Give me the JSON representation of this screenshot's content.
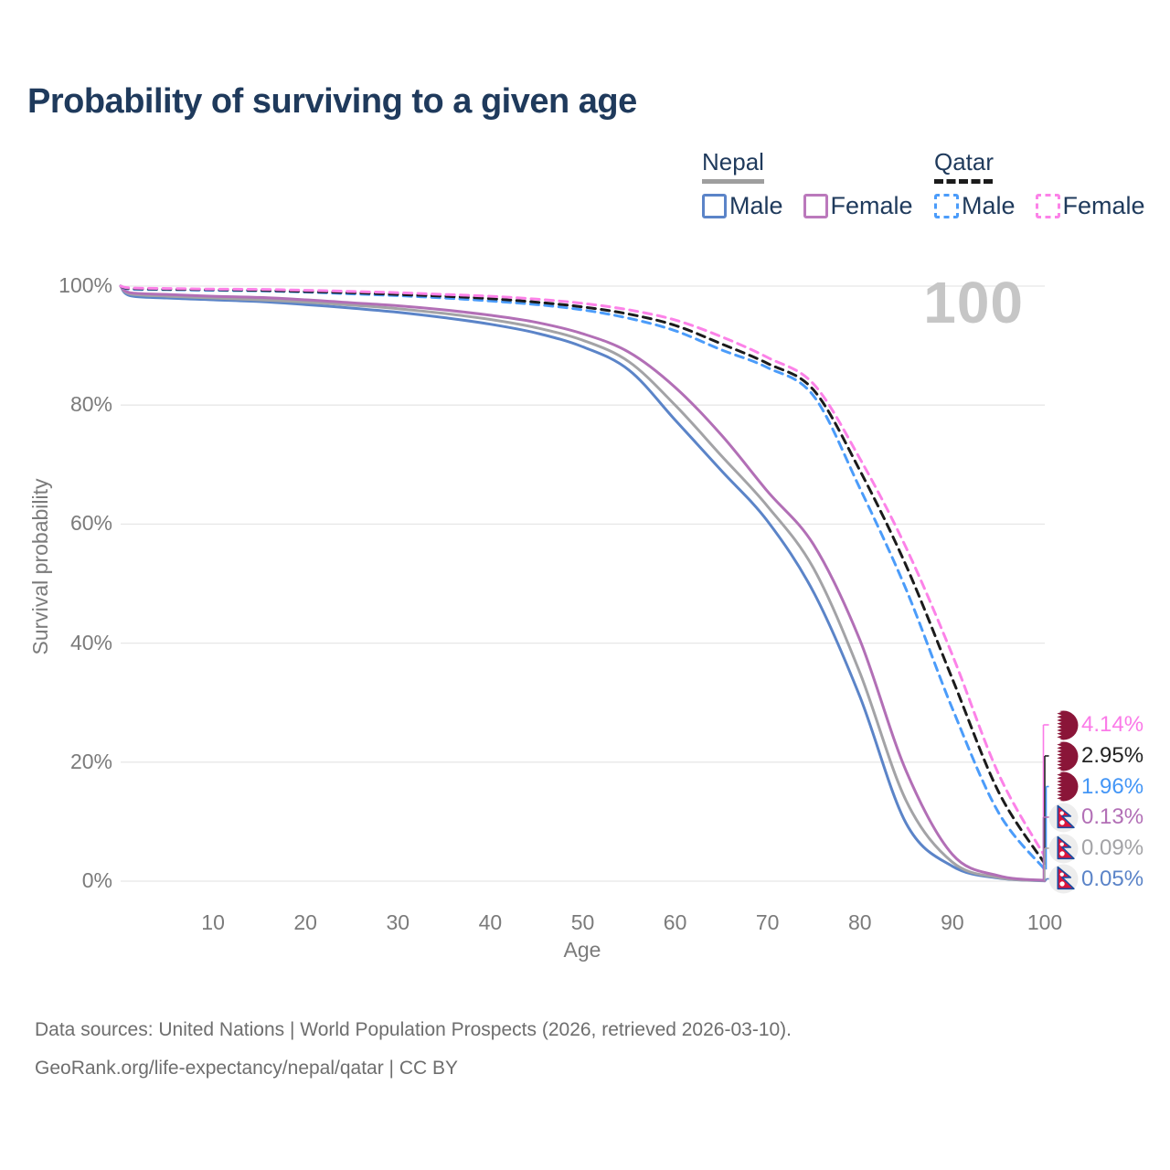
{
  "page": {
    "title": "Probability of surviving to a given age",
    "watermark_age": "100",
    "footer_line1": "Data sources: United Nations | World Population Prospects (2026, retrieved 2026-03-10).",
    "footer_line2": "GeoRank.org/life-expectancy/nepal/qatar | CC BY"
  },
  "legend": {
    "groups": [
      {
        "country": "Nepal",
        "underline_style": "solid",
        "underline_color": "#9e9e9e",
        "items": [
          {
            "label": "Male",
            "color": "#5b84c8",
            "dashed": false
          },
          {
            "label": "Female",
            "color": "#bb79bc",
            "dashed": false
          }
        ]
      },
      {
        "country": "Qatar",
        "underline_style": "dashed",
        "underline_color": "#1b1b1b",
        "items": [
          {
            "label": "Male",
            "color": "#4b9cfa",
            "dashed": true
          },
          {
            "label": "Female",
            "color": "#fc82e8",
            "dashed": true
          }
        ]
      }
    ]
  },
  "chart_data": {
    "type": "line",
    "title": "Probability of surviving to a given age",
    "xlabel": "Age",
    "ylabel": "Survival probability",
    "xlim": [
      0,
      100
    ],
    "ylim": [
      0,
      100
    ],
    "grid": "horizontal-only",
    "x_ticks": [
      10,
      20,
      30,
      40,
      50,
      60,
      70,
      80,
      90,
      100
    ],
    "y_ticks": [
      {
        "value": 0,
        "label": "0%"
      },
      {
        "value": 20,
        "label": "20%"
      },
      {
        "value": 40,
        "label": "40%"
      },
      {
        "value": 60,
        "label": "60%"
      },
      {
        "value": 80,
        "label": "80%"
      },
      {
        "value": 100,
        "label": "100%"
      }
    ],
    "hover_age": "100",
    "ages": [
      0,
      1,
      5,
      10,
      15,
      20,
      25,
      30,
      35,
      40,
      45,
      50,
      55,
      60,
      65,
      70,
      75,
      80,
      85,
      90,
      95,
      100
    ],
    "series": [
      {
        "name": "Nepal Male",
        "country": "Nepal",
        "sex": "Male",
        "color": "#5b84c8",
        "dash": "solid",
        "values": [
          100,
          98.4,
          98.0,
          97.7,
          97.4,
          96.9,
          96.3,
          95.6,
          94.7,
          93.6,
          92.1,
          89.8,
          85.9,
          77.5,
          69.0,
          60.5,
          48.5,
          31.0,
          9.7,
          2.5,
          0.5,
          0.05
        ],
        "end_value_pct": 0.05
      },
      {
        "name": "Nepal Both sexes",
        "country": "Nepal",
        "sex": "Both",
        "color": "#a3a3a6",
        "dash": "solid",
        "values": [
          100,
          98.7,
          98.3,
          98.0,
          97.7,
          97.3,
          96.8,
          96.2,
          95.4,
          94.4,
          93.0,
          90.9,
          87.3,
          80.0,
          71.5,
          63.0,
          52.5,
          35.0,
          13.5,
          3.2,
          0.6,
          0.09
        ],
        "end_value_pct": 0.09
      },
      {
        "name": "Nepal Female",
        "country": "Nepal",
        "sex": "Female",
        "color": "#b26fb6",
        "dash": "solid",
        "values": [
          100,
          98.9,
          98.6,
          98.3,
          98.1,
          97.7,
          97.2,
          96.7,
          96.0,
          95.1,
          93.9,
          92.0,
          88.9,
          83.0,
          75.0,
          65.5,
          56.5,
          40.5,
          18.5,
          4.5,
          0.9,
          0.13
        ],
        "end_value_pct": 0.13
      },
      {
        "name": "Qatar Male",
        "country": "Qatar",
        "sex": "Male",
        "color": "#4b9cfa",
        "dash": "dashed",
        "values": [
          100,
          99.5,
          99.4,
          99.3,
          99.2,
          99.0,
          98.7,
          98.4,
          98.0,
          97.5,
          96.9,
          96.0,
          94.6,
          92.5,
          89.3,
          86.3,
          81.5,
          66.0,
          49.0,
          29.0,
          11.5,
          1.96
        ],
        "end_value_pct": 1.96
      },
      {
        "name": "Qatar Both sexes",
        "country": "Qatar",
        "sex": "Both",
        "color": "#1b1b1b",
        "dash": "dashed",
        "values": [
          100,
          99.6,
          99.5,
          99.4,
          99.3,
          99.1,
          98.9,
          98.6,
          98.3,
          97.9,
          97.3,
          96.5,
          95.3,
          93.4,
          90.3,
          87.0,
          82.5,
          69.0,
          53.0,
          34.0,
          15.0,
          2.95
        ],
        "end_value_pct": 2.95
      },
      {
        "name": "Qatar Female",
        "country": "Qatar",
        "sex": "Female",
        "color": "#fc82e8",
        "dash": "dashed",
        "values": [
          100,
          99.7,
          99.6,
          99.5,
          99.45,
          99.3,
          99.1,
          98.9,
          98.6,
          98.3,
          97.8,
          97.1,
          96.0,
          94.3,
          91.5,
          88.0,
          83.5,
          71.0,
          56.0,
          38.0,
          18.0,
          4.14
        ],
        "end_value_pct": 4.14
      }
    ],
    "end_labels": [
      {
        "value": "4.14%",
        "color": "#fb7ae8",
        "flag": "qatar",
        "series_index": 5
      },
      {
        "value": "2.95%",
        "color": "#232323",
        "flag": "qatar",
        "series_index": 4
      },
      {
        "value": "1.96%",
        "color": "#4496f6",
        "flag": "qatar",
        "series_index": 3
      },
      {
        "value": "0.13%",
        "color": "#b26fb6",
        "flag": "nepal",
        "series_index": 2
      },
      {
        "value": "0.09%",
        "color": "#a3a3a6",
        "flag": "nepal",
        "series_index": 1
      },
      {
        "value": "0.05%",
        "color": "#5b84c8",
        "flag": "nepal",
        "series_index": 0
      }
    ],
    "flag_colors": {
      "qatar_maroon": "#8a1538",
      "nepal_crimson": "#dc143c",
      "nepal_blue": "#1b4ca0"
    }
  }
}
